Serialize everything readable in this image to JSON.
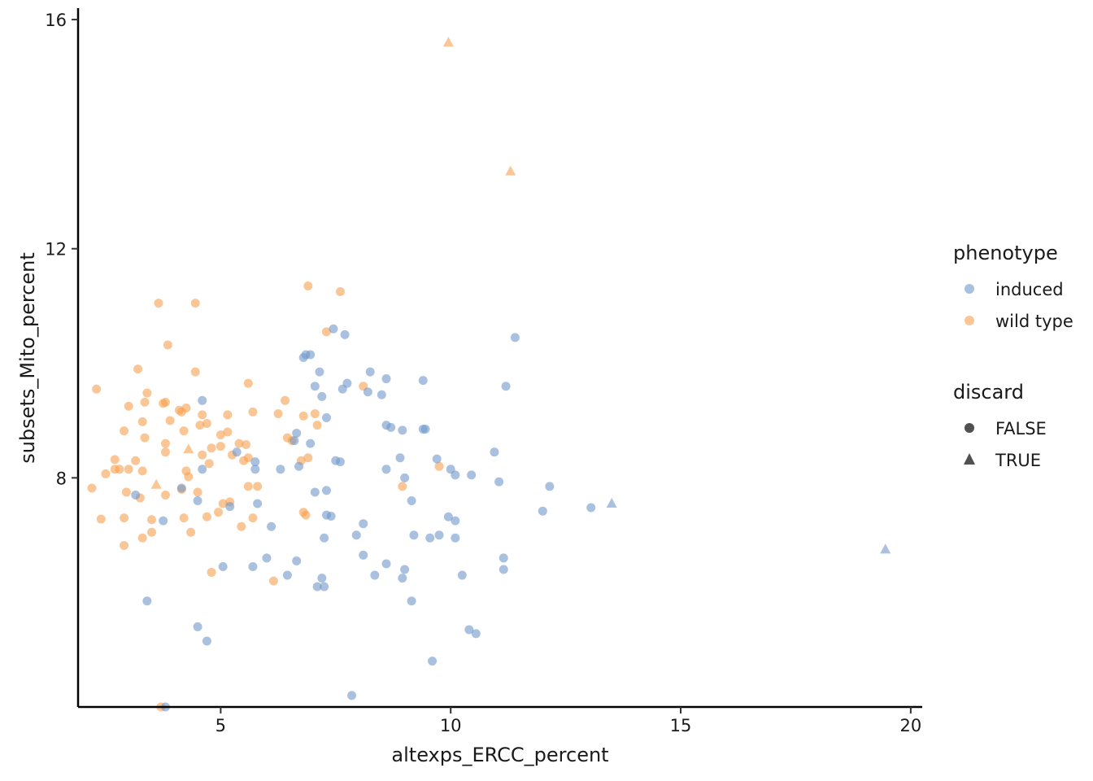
{
  "chart_data": {
    "type": "scatter",
    "title": "",
    "xlabel": "altexps_ERCC_percent",
    "ylabel": "subsets_Mito_percent",
    "xlim": [
      1.9,
      20.25
    ],
    "ylim": [
      4.0,
      16.2
    ],
    "x_ticks": [
      5,
      10,
      15,
      20
    ],
    "y_ticks": [
      8,
      12,
      16
    ],
    "grid": false,
    "legend_position": "right",
    "point_opacity": 0.6,
    "colors": {
      "induced": "#6f97c9",
      "wild type": "#f8a04e"
    },
    "legend": {
      "color_title": "phenotype",
      "color_items": [
        "induced",
        "wild type"
      ],
      "shape_title": "discard",
      "shape_items": [
        {
          "label": "FALSE",
          "shape": "circle"
        },
        {
          "label": "TRUE",
          "shape": "triangle"
        }
      ]
    },
    "series": [
      {
        "name": "wild type",
        "points": [
          [
            2.2,
            7.82,
            0
          ],
          [
            2.3,
            9.55,
            0
          ],
          [
            2.4,
            7.28,
            0
          ],
          [
            2.5,
            8.07,
            0
          ],
          [
            2.7,
            8.32,
            0
          ],
          [
            2.7,
            8.15,
            0
          ],
          [
            2.8,
            8.15,
            0
          ],
          [
            2.9,
            8.82,
            0
          ],
          [
            2.9,
            7.3,
            0
          ],
          [
            2.9,
            6.82,
            0
          ],
          [
            2.95,
            7.75,
            0
          ],
          [
            3.0,
            9.25,
            0
          ],
          [
            3.0,
            8.15,
            0
          ],
          [
            3.15,
            8.3,
            0
          ],
          [
            3.2,
            9.9,
            0
          ],
          [
            3.25,
            7.65,
            0
          ],
          [
            3.3,
            8.98,
            0
          ],
          [
            3.3,
            8.12,
            0
          ],
          [
            3.3,
            6.95,
            0
          ],
          [
            3.35,
            9.32,
            0
          ],
          [
            3.4,
            9.48,
            0
          ],
          [
            3.35,
            8.7,
            0
          ],
          [
            3.5,
            7.27,
            0
          ],
          [
            3.5,
            7.05,
            0
          ],
          [
            3.6,
            7.88,
            1
          ],
          [
            3.65,
            11.05,
            0
          ],
          [
            3.7,
            4.0,
            0
          ],
          [
            3.75,
            9.3,
            0
          ],
          [
            3.8,
            9.32,
            0
          ],
          [
            3.8,
            8.6,
            0
          ],
          [
            3.8,
            8.45,
            0
          ],
          [
            3.8,
            7.7,
            0
          ],
          [
            3.85,
            10.32,
            0
          ],
          [
            3.9,
            9.0,
            0
          ],
          [
            4.1,
            9.18,
            0
          ],
          [
            4.15,
            9.15,
            0
          ],
          [
            4.15,
            7.8,
            0
          ],
          [
            4.2,
            8.82,
            0
          ],
          [
            4.2,
            7.3,
            0
          ],
          [
            4.25,
            9.22,
            0
          ],
          [
            4.25,
            8.12,
            0
          ],
          [
            4.3,
            8.02,
            0
          ],
          [
            4.3,
            8.5,
            1
          ],
          [
            4.35,
            7.05,
            0
          ],
          [
            4.45,
            11.05,
            0
          ],
          [
            4.45,
            9.85,
            0
          ],
          [
            4.5,
            7.75,
            0
          ],
          [
            4.55,
            8.92,
            0
          ],
          [
            4.6,
            9.1,
            0
          ],
          [
            4.6,
            8.4,
            0
          ],
          [
            4.7,
            8.95,
            0
          ],
          [
            4.7,
            7.32,
            0
          ],
          [
            4.75,
            8.25,
            0
          ],
          [
            4.8,
            8.52,
            0
          ],
          [
            4.8,
            6.35,
            0
          ],
          [
            4.95,
            7.4,
            0
          ],
          [
            5.0,
            8.55,
            0
          ],
          [
            5.0,
            8.75,
            0
          ],
          [
            5.05,
            7.55,
            0
          ],
          [
            5.15,
            9.1,
            0
          ],
          [
            5.15,
            8.8,
            0
          ],
          [
            5.2,
            7.58,
            0
          ],
          [
            5.25,
            8.4,
            0
          ],
          [
            5.4,
            8.6,
            0
          ],
          [
            5.45,
            7.15,
            0
          ],
          [
            5.5,
            8.3,
            0
          ],
          [
            5.55,
            8.58,
            0
          ],
          [
            5.6,
            8.35,
            0
          ],
          [
            5.6,
            7.85,
            0
          ],
          [
            5.6,
            9.65,
            0
          ],
          [
            5.7,
            9.15,
            0
          ],
          [
            5.7,
            7.3,
            0
          ],
          [
            5.8,
            7.85,
            0
          ],
          [
            6.15,
            6.2,
            0
          ],
          [
            6.25,
            9.12,
            0
          ],
          [
            6.4,
            9.35,
            0
          ],
          [
            6.45,
            8.7,
            0
          ],
          [
            6.55,
            8.65,
            0
          ],
          [
            6.75,
            8.3,
            0
          ],
          [
            6.8,
            9.08,
            0
          ],
          [
            6.8,
            7.4,
            0
          ],
          [
            6.85,
            7.35,
            0
          ],
          [
            6.9,
            8.35,
            0
          ],
          [
            6.9,
            11.35,
            0
          ],
          [
            7.05,
            9.12,
            0
          ],
          [
            7.1,
            8.92,
            0
          ],
          [
            7.3,
            10.55,
            0
          ],
          [
            7.6,
            11.25,
            0
          ],
          [
            8.1,
            9.6,
            0
          ],
          [
            8.95,
            7.85,
            0
          ],
          [
            9.75,
            8.2,
            0
          ],
          [
            9.95,
            15.6,
            1
          ],
          [
            11.3,
            13.35,
            1
          ]
        ]
      },
      {
        "name": "induced",
        "points": [
          [
            3.15,
            7.7,
            0
          ],
          [
            3.4,
            5.85,
            0
          ],
          [
            3.75,
            7.25,
            0
          ],
          [
            3.8,
            4.0,
            0
          ],
          [
            4.15,
            7.82,
            0
          ],
          [
            4.5,
            5.4,
            0
          ],
          [
            4.5,
            7.6,
            0
          ],
          [
            4.6,
            9.35,
            0
          ],
          [
            4.6,
            8.15,
            0
          ],
          [
            4.7,
            5.15,
            0
          ],
          [
            5.05,
            6.45,
            0
          ],
          [
            5.2,
            7.5,
            0
          ],
          [
            5.35,
            8.45,
            0
          ],
          [
            5.7,
            6.45,
            0
          ],
          [
            5.75,
            8.28,
            0
          ],
          [
            5.75,
            8.15,
            0
          ],
          [
            5.8,
            7.55,
            0
          ],
          [
            6.0,
            6.6,
            0
          ],
          [
            6.1,
            7.15,
            0
          ],
          [
            6.3,
            8.15,
            0
          ],
          [
            6.45,
            6.3,
            0
          ],
          [
            6.6,
            8.65,
            0
          ],
          [
            6.65,
            8.78,
            0
          ],
          [
            6.65,
            6.55,
            0
          ],
          [
            6.7,
            8.2,
            0
          ],
          [
            6.8,
            10.1,
            0
          ],
          [
            6.85,
            10.15,
            0
          ],
          [
            6.95,
            10.15,
            0
          ],
          [
            6.95,
            8.6,
            0
          ],
          [
            7.05,
            9.6,
            0
          ],
          [
            7.05,
            7.75,
            0
          ],
          [
            7.1,
            6.1,
            0
          ],
          [
            7.15,
            9.85,
            0
          ],
          [
            7.2,
            6.25,
            0
          ],
          [
            7.2,
            9.42,
            0
          ],
          [
            7.25,
            6.1,
            0
          ],
          [
            7.25,
            6.95,
            0
          ],
          [
            7.3,
            9.05,
            0
          ],
          [
            7.3,
            7.78,
            0
          ],
          [
            7.3,
            7.35,
            0
          ],
          [
            7.4,
            7.33,
            0
          ],
          [
            7.45,
            10.6,
            0
          ],
          [
            7.5,
            8.3,
            0
          ],
          [
            7.6,
            8.28,
            0
          ],
          [
            7.65,
            9.55,
            0
          ],
          [
            7.7,
            10.5,
            0
          ],
          [
            7.75,
            9.65,
            0
          ],
          [
            7.85,
            4.2,
            0
          ],
          [
            7.95,
            7.0,
            0
          ],
          [
            8.1,
            7.2,
            0
          ],
          [
            8.1,
            6.65,
            0
          ],
          [
            8.2,
            9.5,
            0
          ],
          [
            8.25,
            9.85,
            0
          ],
          [
            8.35,
            6.3,
            0
          ],
          [
            8.5,
            9.45,
            0
          ],
          [
            8.6,
            9.73,
            0
          ],
          [
            8.6,
            8.92,
            0
          ],
          [
            8.6,
            8.15,
            0
          ],
          [
            8.6,
            6.5,
            0
          ],
          [
            8.7,
            8.88,
            0
          ],
          [
            8.9,
            8.35,
            0
          ],
          [
            8.95,
            6.25,
            0
          ],
          [
            8.95,
            8.83,
            0
          ],
          [
            9.0,
            6.4,
            0
          ],
          [
            9.0,
            8.0,
            0
          ],
          [
            9.15,
            5.85,
            0
          ],
          [
            9.15,
            7.6,
            0
          ],
          [
            9.2,
            7.0,
            0
          ],
          [
            9.4,
            9.7,
            0
          ],
          [
            9.4,
            8.85,
            0
          ],
          [
            9.45,
            8.85,
            0
          ],
          [
            9.55,
            6.95,
            0
          ],
          [
            9.6,
            4.8,
            0
          ],
          [
            9.7,
            8.33,
            0
          ],
          [
            9.75,
            7.0,
            0
          ],
          [
            9.95,
            7.32,
            0
          ],
          [
            10.0,
            8.15,
            0
          ],
          [
            10.1,
            8.05,
            0
          ],
          [
            10.1,
            7.25,
            0
          ],
          [
            10.1,
            6.95,
            0
          ],
          [
            10.25,
            6.3,
            0
          ],
          [
            10.4,
            5.35,
            0
          ],
          [
            10.45,
            8.05,
            0
          ],
          [
            10.55,
            5.28,
            0
          ],
          [
            10.95,
            8.45,
            0
          ],
          [
            11.05,
            7.93,
            0
          ],
          [
            11.15,
            6.6,
            0
          ],
          [
            11.15,
            6.4,
            0
          ],
          [
            11.2,
            9.6,
            0
          ],
          [
            11.4,
            10.45,
            0
          ],
          [
            12.0,
            7.42,
            0
          ],
          [
            12.15,
            7.85,
            0
          ],
          [
            13.05,
            7.48,
            0
          ],
          [
            13.5,
            7.55,
            1
          ],
          [
            19.45,
            6.75,
            1
          ]
        ]
      }
    ]
  }
}
